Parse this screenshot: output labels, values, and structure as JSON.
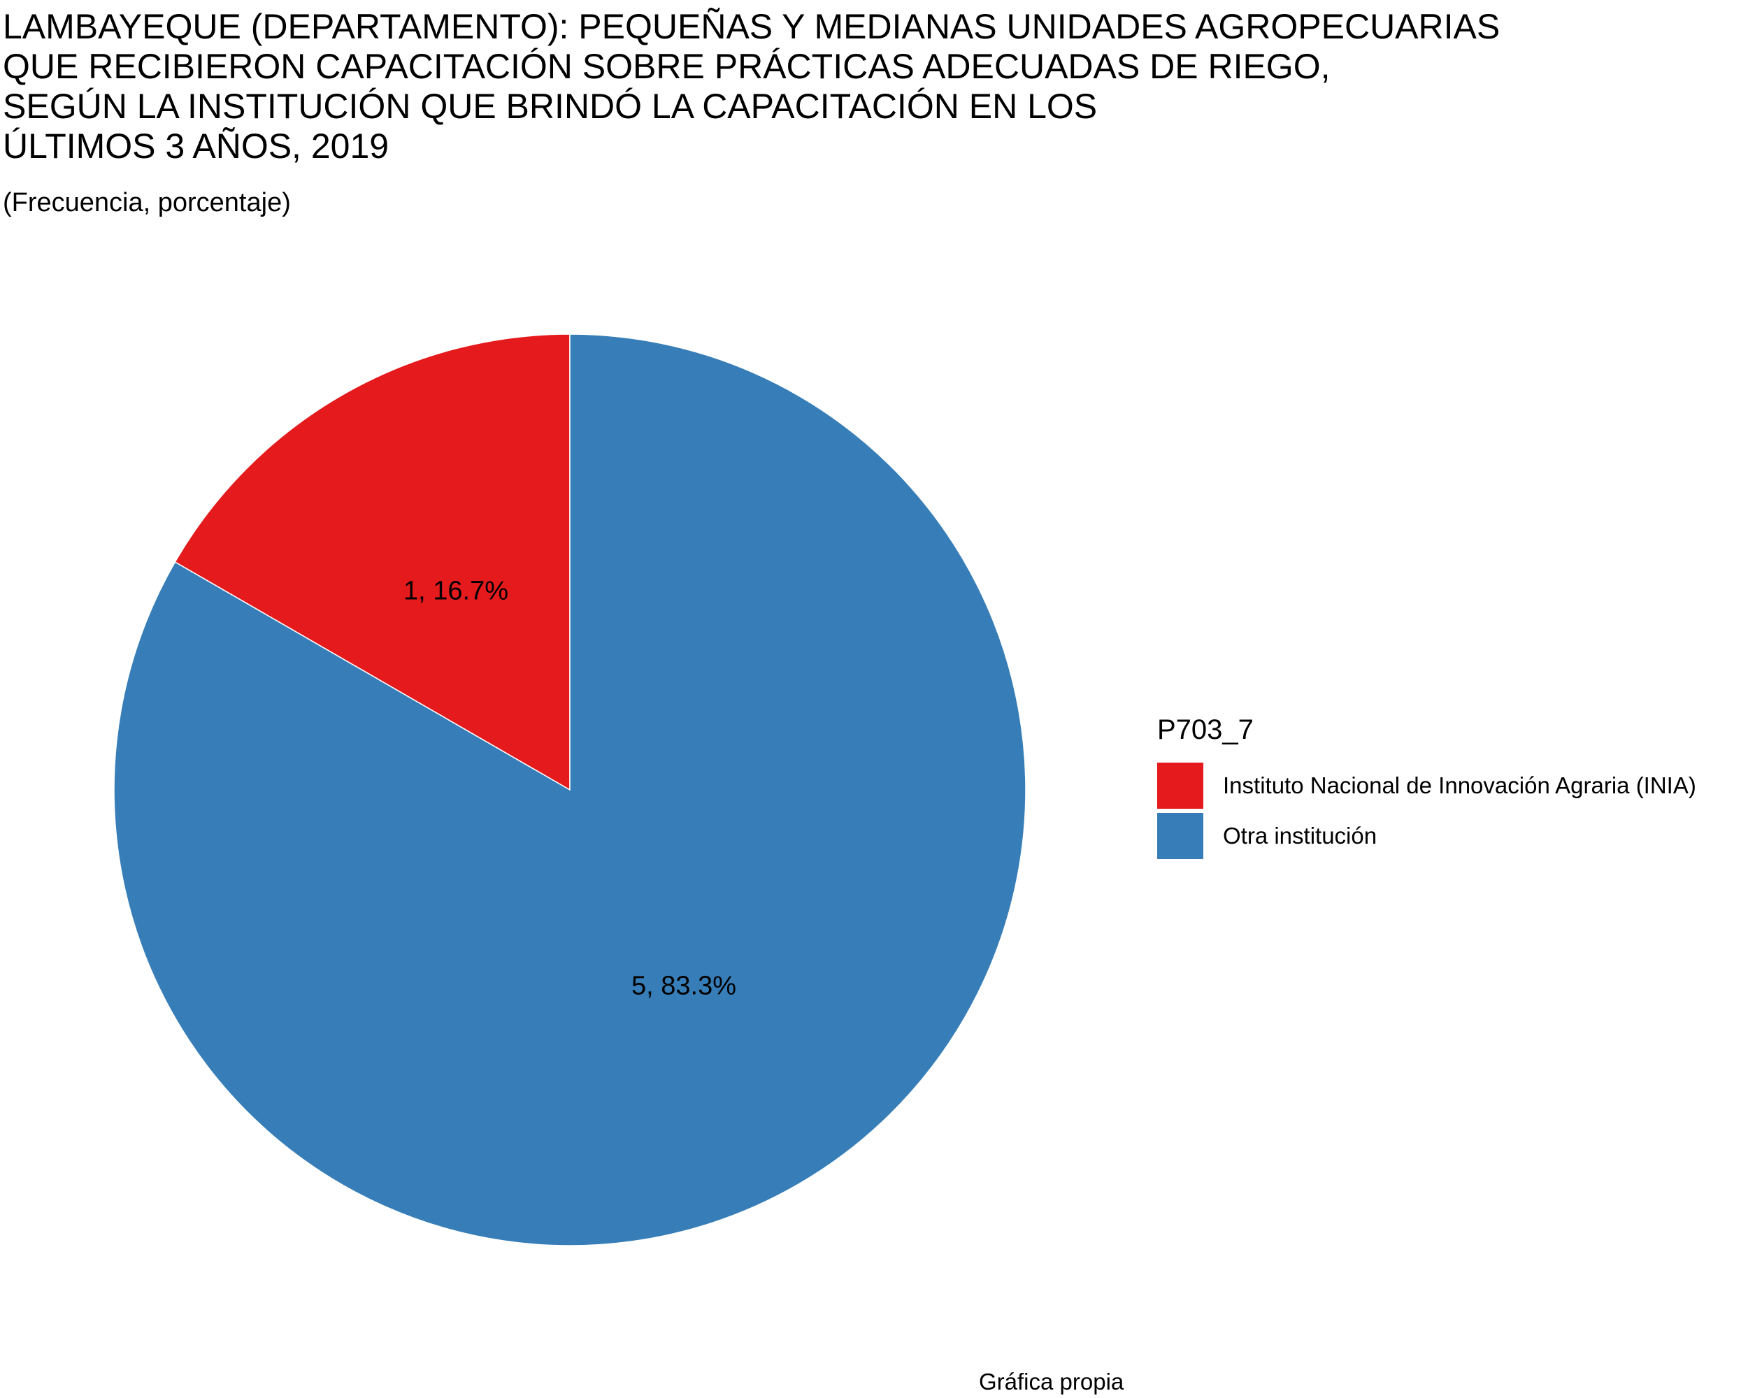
{
  "chart_data": {
    "type": "pie",
    "title_lines": [
      "LAMBAYEQUE (DEPARTAMENTO): PEQUEÑAS Y MEDIANAS UNIDADES AGROPECUARIAS",
      "QUE RECIBIERON CAPACITACIÓN SOBRE PRÁCTICAS ADECUADAS DE RIEGO,",
      "SEGÚN LA INSTITUCIÓN QUE BRINDÓ LA CAPACITACIÓN EN LOS",
      "ÚLTIMOS 3 AÑOS, 2019"
    ],
    "subtitle": "(Frecuencia, porcentaje)",
    "caption": "Gráfica propia",
    "legend": {
      "title": "P703_7",
      "placement": "right"
    },
    "slices": [
      {
        "name": "Instituto Nacional de Innovación Agraria (INIA)",
        "value": 1,
        "percent": 16.7,
        "label": "1, 16.7%",
        "color": "#E41A1C"
      },
      {
        "name": "Otra institución",
        "value": 5,
        "percent": 83.3,
        "label": "5, 83.3%",
        "color": "#377EB8"
      }
    ]
  }
}
